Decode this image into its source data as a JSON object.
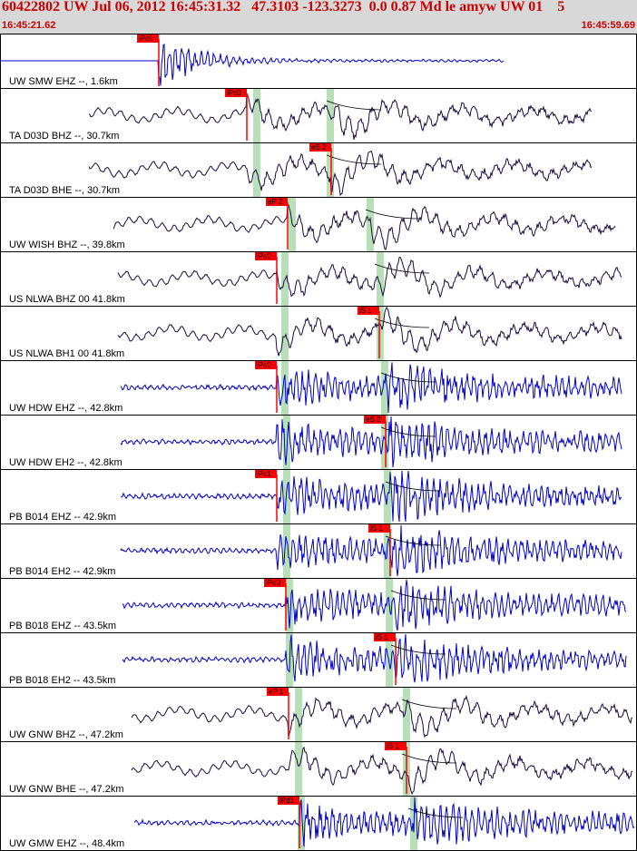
{
  "header": {
    "title": "60422802 UW Jul 06, 2012 16:45:31.32   47.3103 -123.3273  0.0 0.87 Md le amyw UW 01    5",
    "start_time": "16:45:21.62",
    "end_time": "16:45:59.69"
  },
  "colors": {
    "header_bg": "#d8d8d8",
    "title": "#cc0000",
    "pick": "#ff0000",
    "band": "#b8e0b8",
    "trace_blue": "#0000cc",
    "trace_dark": "#1a0a40"
  },
  "traces": [
    {
      "label": "UW SMW EHZ --, 1.6km",
      "color": "blue",
      "p_pick": "iPc0",
      "s_pick": ""
    },
    {
      "label": "TA D03D BHZ --, 30.7km",
      "color": "dark",
      "p_pick": "iPc0",
      "s_pick": ""
    },
    {
      "label": "TA D03D BHE --, 30.7km",
      "color": "dark",
      "p_pick": "",
      "s_pick": "eS 2"
    },
    {
      "label": "UW WISH BHZ --, 39.8km",
      "color": "dark",
      "p_pick": "eP 2",
      "s_pick": ""
    },
    {
      "label": "US NLWA BHZ 00 41.8km",
      "color": "dark",
      "p_pick": "iPc0",
      "s_pick": ""
    },
    {
      "label": "US NLWA BH1 00 41.8km",
      "color": "dark",
      "p_pick": "",
      "s_pick": "iS 1"
    },
    {
      "label": "UW HDW EHZ --, 42.8km",
      "color": "blue",
      "p_pick": "iPc0",
      "s_pick": ""
    },
    {
      "label": "UW HDW EH2 --, 42.8km",
      "color": "blue",
      "p_pick": "",
      "s_pick": "eS 2"
    },
    {
      "label": "PB B014 EHZ -- 42.9km",
      "color": "blue",
      "p_pick": "iPc1",
      "s_pick": ""
    },
    {
      "label": "PB B014 EH2 -- 42.9km",
      "color": "blue",
      "p_pick": "",
      "s_pick": "iS 1"
    },
    {
      "label": "PB B018 EHZ -- 43.5km",
      "color": "blue",
      "p_pick": "iPd0",
      "s_pick": ""
    },
    {
      "label": "PB B018 EH2 -- 43.5km",
      "color": "blue",
      "p_pick": "",
      "s_pick": "iS 1"
    },
    {
      "label": "UW GNW BHZ --, 47.2km",
      "color": "dark",
      "p_pick": "eP 1",
      "s_pick": ""
    },
    {
      "label": "UW GNW BHE --, 47.2km",
      "color": "dark",
      "p_pick": "",
      "s_pick": "iS 1"
    },
    {
      "label": "UW GMW EHZ --, 48.4km",
      "color": "blue",
      "p_pick": "iPd1",
      "s_pick": ""
    }
  ]
}
